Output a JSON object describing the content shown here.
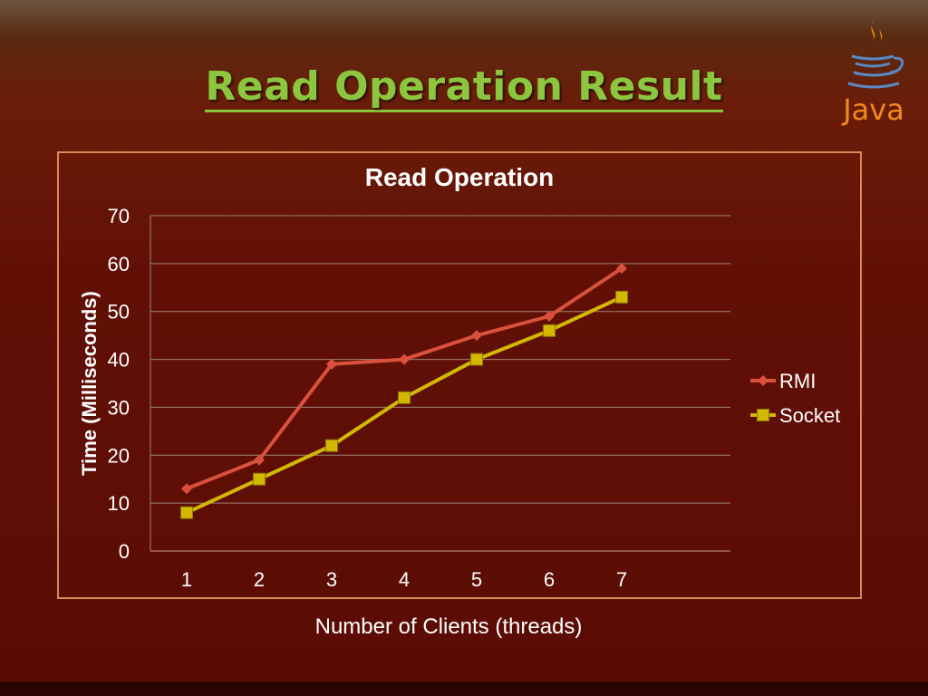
{
  "slide": {
    "title": "Read Operation Result",
    "logo_text": "Java",
    "background_color": "#621006",
    "title_color": "#8cc63f",
    "logo_color": "#f08a1e"
  },
  "chart_data": {
    "type": "line",
    "title": "Read Operation",
    "xlabel": "Number of Clients (threads)",
    "ylabel": "Time (Milliseconds)",
    "categories": [
      "1",
      "2",
      "3",
      "4",
      "5",
      "6",
      "7"
    ],
    "ylim": [
      0,
      70
    ],
    "yticks": [
      0,
      10,
      20,
      30,
      40,
      50,
      60,
      70
    ],
    "grid": true,
    "legend_position": "right",
    "series": [
      {
        "name": "RMI",
        "values": [
          13,
          19,
          39,
          40,
          45,
          49,
          59
        ],
        "color": "#d9513d",
        "marker": "diamond"
      },
      {
        "name": "Socket",
        "values": [
          8,
          15,
          22,
          32,
          40,
          46,
          53
        ],
        "color": "#d4b800",
        "marker": "square"
      }
    ]
  }
}
